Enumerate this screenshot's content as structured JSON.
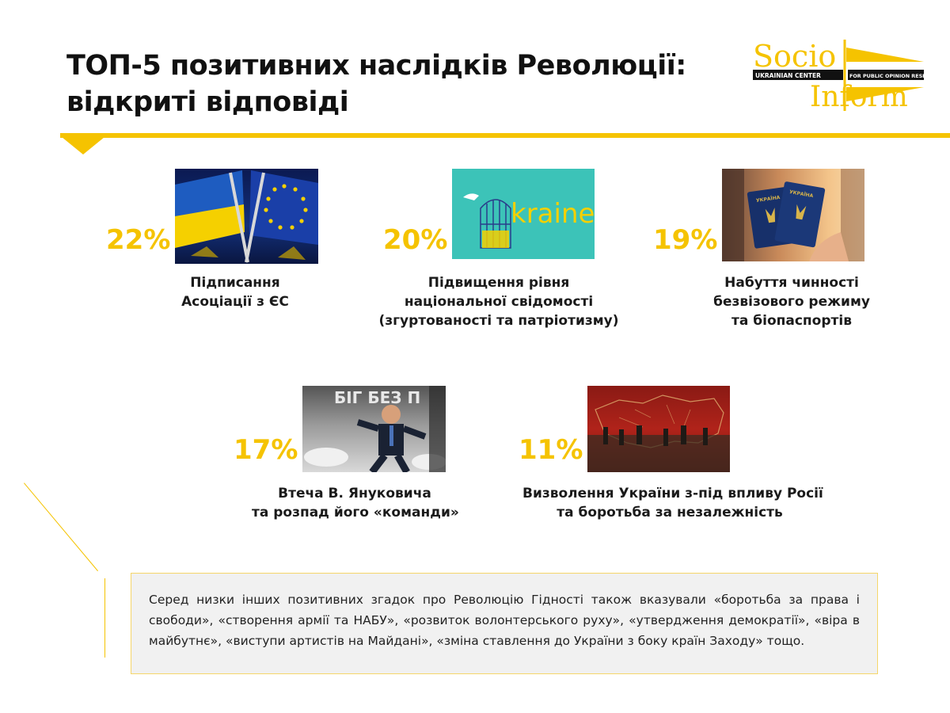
{
  "header": {
    "title_line1": "ТОП-5 позитивних наслідків Революції:",
    "title_line2": "відкриті відповіді"
  },
  "logo": {
    "word1": "Socio",
    "word2": "Inform",
    "band_left": "UKRAINIAN CENTER",
    "band_right": "FOR PUBLIC OPINION RESEARCH"
  },
  "items": [
    {
      "percent": "22%",
      "caption": [
        "Підписання",
        "Асоціації з ЄС"
      ],
      "image": "ukraine-eu-flags-photo"
    },
    {
      "percent": "20%",
      "caption": [
        "Підвищення рівня",
        "національної свідомості",
        "(згуртованості  та патріотизму)"
      ],
      "image": "ukraine-cage-bird-illustration",
      "image_text": "kraine"
    },
    {
      "percent": "19%",
      "caption": [
        "Набуття чинності",
        "безвізового режиму",
        "та біопаспортів"
      ],
      "image": "ukrainian-passports-photo",
      "passport_text": "УКРАЇНА"
    },
    {
      "percent": "17%",
      "caption": [
        "Втеча В. Януковича",
        "та розпад його «команди»"
      ],
      "image": "yanukovych-running-collage",
      "image_text": "БІГ БЕЗ П"
    },
    {
      "percent": "11%",
      "caption": [
        "Визволення України з-під впливу Росії",
        "та боротьба за незалежність"
      ],
      "image": "ukraine-map-soldiers-photo"
    }
  ],
  "note": {
    "text": "Серед низки інших позитивних згадок про Революцію Гідності також вказували «боротьба за права і свободи», «створення армії та НАБУ», «розвиток волонтерського руху», «утвердження демократії», «віра в майбутнє», «виступи артистів на Майдані», «зміна ставлення до України з боку країн Заходу» тощо."
  },
  "colors": {
    "accent": "#f5c300",
    "text": "#1a1a1a",
    "note_bg": "#f1f1f1"
  }
}
